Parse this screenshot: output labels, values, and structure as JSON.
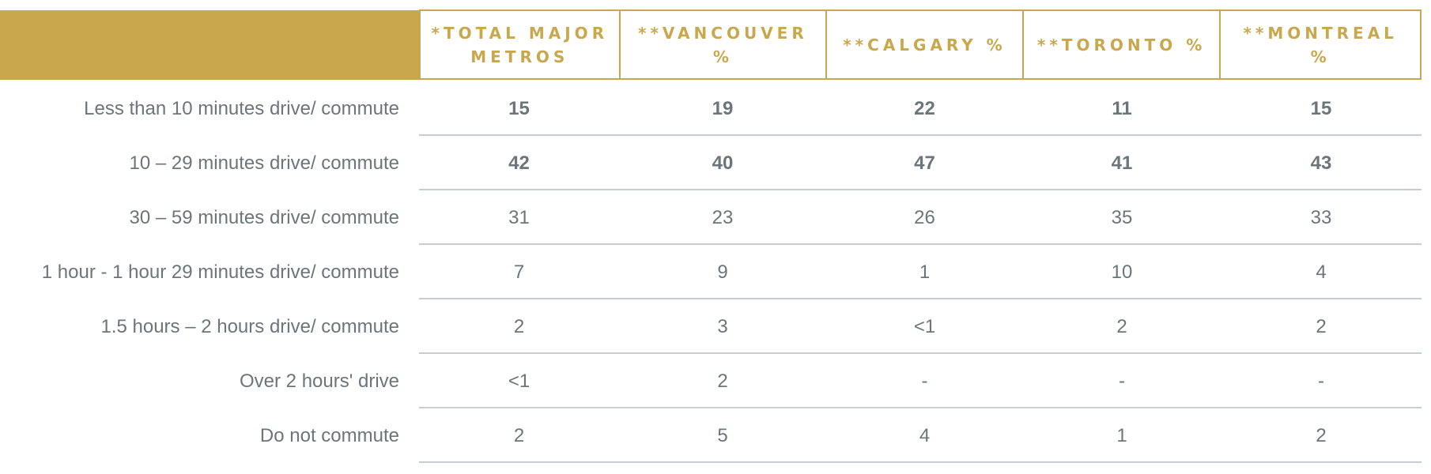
{
  "colors": {
    "accent": "#c9a84d",
    "text": "#6b757a",
    "divider": "#c8cdd1"
  },
  "columns": [
    "*TOTAL MAJOR METROS",
    "**VANCOUVER %",
    "**CALGARY %",
    "**TORONTO %",
    "**MONTREAL %"
  ],
  "rows": [
    {
      "label": "Less than 10 minutes drive/ commute",
      "values": [
        "15",
        "19",
        "22",
        "11",
        "15"
      ],
      "bold": true
    },
    {
      "label": "10 – 29 minutes drive/ commute",
      "values": [
        "42",
        "40",
        "47",
        "41",
        "43"
      ],
      "bold": true
    },
    {
      "label": "30 – 59 minutes drive/ commute",
      "values": [
        "31",
        "23",
        "26",
        "35",
        "33"
      ],
      "bold": false
    },
    {
      "label": "1 hour - 1 hour 29 minutes drive/ commute",
      "values": [
        "7",
        "9",
        "1",
        "10",
        "4"
      ],
      "bold": false
    },
    {
      "label": "1.5 hours – 2 hours drive/ commute",
      "values": [
        "2",
        "3",
        "<1",
        "2",
        "2"
      ],
      "bold": false
    },
    {
      "label": "Over 2 hours' drive",
      "values": [
        "<1",
        "2",
        "-",
        "-",
        "-"
      ],
      "bold": false
    },
    {
      "label": "Do not commute",
      "values": [
        "2",
        "5",
        "4",
        "1",
        "2"
      ],
      "bold": false
    }
  ]
}
